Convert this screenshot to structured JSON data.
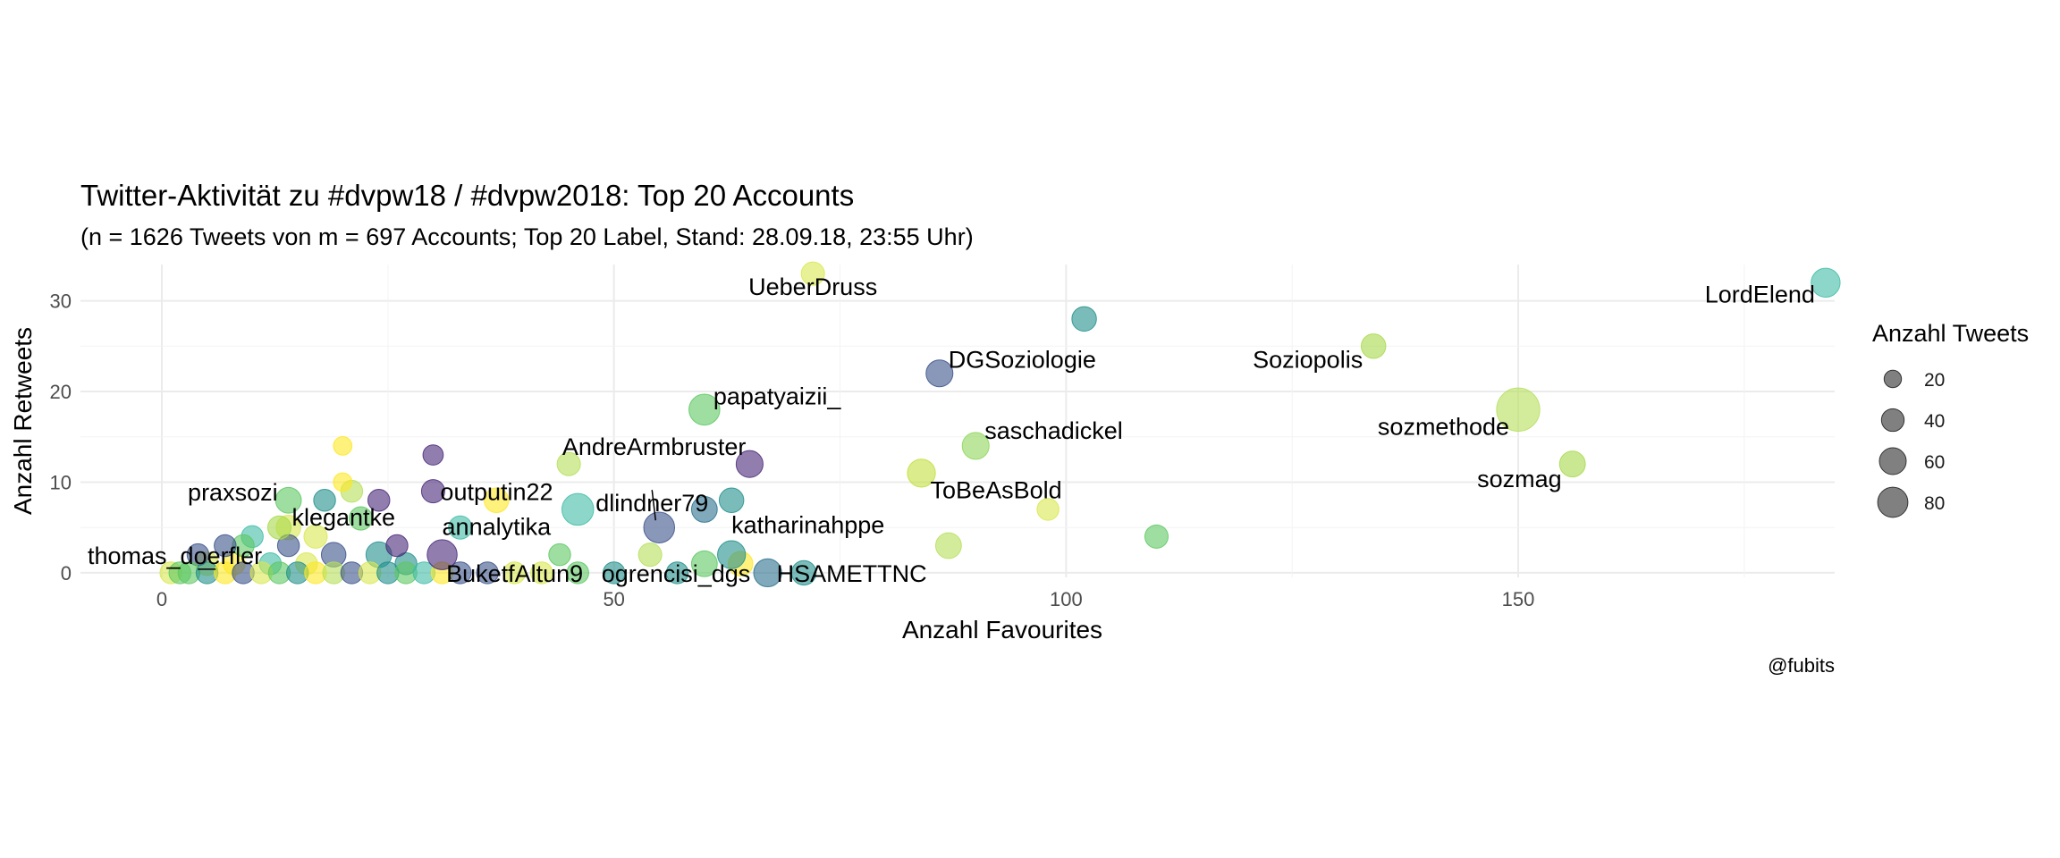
{
  "title": "Twitter-Aktivität zu #dvpw18 / #dvpw2018: Top 20 Accounts",
  "subtitle": "(n = 1626 Tweets von m = 697 Accounts; Top 20 Label, Stand: 28.09.18, 23:55 Uhr)",
  "caption": "@fubits",
  "chart_data": {
    "type": "scatter",
    "title": "Twitter-Aktivität zu #dvpw18 / #dvpw2018: Top 20 Accounts",
    "subtitle": "(n = 1626 Tweets von m = 697 Accounts; Top 20 Label, Stand: 28.09.18, 23:55 Uhr)",
    "xlabel": "Anzahl Favourites",
    "ylabel": "Anzahl Retweets",
    "xlim": [
      -9,
      185
    ],
    "ylim": [
      -0.5,
      34
    ],
    "xticks": [
      0,
      50,
      100,
      150
    ],
    "yticks": [
      0,
      10,
      20,
      30
    ],
    "grid": true,
    "legend": {
      "title": "Anzahl Tweets",
      "placement": "right",
      "sizes": [
        {
          "label": "20",
          "value": 20
        },
        {
          "label": "40",
          "value": 40
        },
        {
          "label": "60",
          "value": 60
        },
        {
          "label": "80",
          "value": 80
        }
      ]
    },
    "colors": {
      "viridis": [
        "#440154",
        "#3b528b",
        "#21908c",
        "#5dc863",
        "#fde725"
      ]
    },
    "labeled_points": [
      {
        "label": "LordElend",
        "x": 184,
        "y": 32,
        "size": 22,
        "color": "#3fbca6"
      },
      {
        "label": "UeberDruss",
        "x": 72,
        "y": 33,
        "size": 12,
        "color": "#d9e84f"
      },
      {
        "label": "DGSoziologie",
        "x": 86,
        "y": 22,
        "size": 18,
        "color": "#3b528b"
      },
      {
        "label": "Soziopolis",
        "x": 134,
        "y": 25,
        "size": 14,
        "color": "#a6d94a"
      },
      {
        "label": "papatyaizii_",
        "x": 60,
        "y": 18,
        "size": 26,
        "color": "#5dc863"
      },
      {
        "label": "sozmethode",
        "x": 150,
        "y": 18,
        "size": 60,
        "color": "#b5df5a"
      },
      {
        "label": "saschadickel",
        "x": 90,
        "y": 14,
        "size": 18,
        "color": "#8ed65a"
      },
      {
        "label": "AndreArmbruster",
        "x": 65,
        "y": 12,
        "size": 18,
        "color": "#482878"
      },
      {
        "label": "sozmag",
        "x": 156,
        "y": 12,
        "size": 16,
        "color": "#a6d94a"
      },
      {
        "label": "ToBeAsBold",
        "x": 84,
        "y": 11,
        "size": 20,
        "color": "#c2df3d"
      },
      {
        "label": "praxsozi",
        "x": 14,
        "y": 8,
        "size": 16,
        "color": "#5dc863"
      },
      {
        "label": "outputin22",
        "x": 30,
        "y": 9,
        "size": 12,
        "color": "#482878"
      },
      {
        "label": "dlindner79",
        "x": 55,
        "y": 5,
        "size": 26,
        "color": "#3b528b"
      },
      {
        "label": "klegantke",
        "x": 13,
        "y": 5,
        "size": 12,
        "color": "#a6d94a"
      },
      {
        "label": "annalytika",
        "x": 31,
        "y": 2,
        "size": 24,
        "color": "#482878"
      },
      {
        "label": "katharinahppe",
        "x": 63,
        "y": 2,
        "size": 20,
        "color": "#21908c"
      },
      {
        "label": "thomas_doerfler",
        "x": 2,
        "y": 0,
        "size": 10,
        "color": "#5dc863"
      },
      {
        "label": "BuketfAltun9",
        "x": 36,
        "y": 0,
        "size": 10,
        "color": "#3b528b"
      },
      {
        "label": "ogrencisi_dgs",
        "x": 50,
        "y": 0,
        "size": 10,
        "color": "#21908c"
      },
      {
        "label": "HSAMETTNC",
        "x": 67,
        "y": 0,
        "size": 20,
        "color": "#2c728e"
      }
    ],
    "unlabeled_points": [
      {
        "x": 102,
        "y": 28,
        "size": 14,
        "color": "#21908c"
      },
      {
        "x": 110,
        "y": 4,
        "size": 12,
        "color": "#5dc863"
      },
      {
        "x": 98,
        "y": 7,
        "size": 10,
        "color": "#d9e84f"
      },
      {
        "x": 87,
        "y": 3,
        "size": 16,
        "color": "#b5df5a"
      },
      {
        "x": 46,
        "y": 7,
        "size": 28,
        "color": "#3fbca6"
      },
      {
        "x": 60,
        "y": 7,
        "size": 16,
        "color": "#2c728e"
      },
      {
        "x": 63,
        "y": 8,
        "size": 14,
        "color": "#21908c"
      },
      {
        "x": 45,
        "y": 12,
        "size": 12,
        "color": "#b5df5a"
      },
      {
        "x": 37,
        "y": 8,
        "size": 14,
        "color": "#fde725"
      },
      {
        "x": 33,
        "y": 5,
        "size": 12,
        "color": "#3fbca6"
      },
      {
        "x": 30,
        "y": 13,
        "size": 8,
        "color": "#482878"
      },
      {
        "x": 20,
        "y": 14,
        "size": 6,
        "color": "#fde725"
      },
      {
        "x": 21,
        "y": 9,
        "size": 10,
        "color": "#b5df5a"
      },
      {
        "x": 20,
        "y": 10,
        "size": 6,
        "color": "#fde725"
      },
      {
        "x": 18,
        "y": 8,
        "size": 10,
        "color": "#21908c"
      },
      {
        "x": 24,
        "y": 8,
        "size": 10,
        "color": "#482878"
      },
      {
        "x": 22,
        "y": 6,
        "size": 12,
        "color": "#5dc863"
      },
      {
        "x": 14,
        "y": 5,
        "size": 14,
        "color": "#d9e84f"
      },
      {
        "x": 10,
        "y": 4,
        "size": 10,
        "color": "#3fbca6"
      },
      {
        "x": 17,
        "y": 4,
        "size": 12,
        "color": "#d9e84f"
      },
      {
        "x": 24,
        "y": 2,
        "size": 16,
        "color": "#21908c"
      },
      {
        "x": 19,
        "y": 2,
        "size": 14,
        "color": "#3b528b"
      },
      {
        "x": 44,
        "y": 2,
        "size": 10,
        "color": "#5dc863"
      },
      {
        "x": 54,
        "y": 2,
        "size": 12,
        "color": "#b5df5a"
      },
      {
        "x": 60,
        "y": 1,
        "size": 16,
        "color": "#5dc863"
      },
      {
        "x": 64,
        "y": 1,
        "size": 14,
        "color": "#fde725"
      },
      {
        "x": 71,
        "y": 0,
        "size": 14,
        "color": "#21908c"
      },
      {
        "x": 42,
        "y": 0,
        "size": 10,
        "color": "#d9e84f"
      },
      {
        "x": 5,
        "y": 1,
        "size": 12,
        "color": "#d9e84f"
      },
      {
        "x": 8,
        "y": 1,
        "size": 10,
        "color": "#fde725"
      },
      {
        "x": 12,
        "y": 1,
        "size": 10,
        "color": "#3fbca6"
      },
      {
        "x": 16,
        "y": 1,
        "size": 10,
        "color": "#d9e84f"
      },
      {
        "x": 27,
        "y": 1,
        "size": 10,
        "color": "#21908c"
      },
      {
        "x": 4,
        "y": 2,
        "size": 10,
        "color": "#3b528b"
      },
      {
        "x": 9,
        "y": 3,
        "size": 10,
        "color": "#5dc863"
      },
      {
        "x": 14,
        "y": 3,
        "size": 10,
        "color": "#3b528b"
      },
      {
        "x": 26,
        "y": 3,
        "size": 10,
        "color": "#482878"
      },
      {
        "x": 7,
        "y": 3,
        "size": 10,
        "color": "#3b528b"
      },
      {
        "x": 1,
        "y": 0,
        "size": 10,
        "color": "#d9e84f"
      },
      {
        "x": 3,
        "y": 0,
        "size": 10,
        "color": "#5dc863"
      },
      {
        "x": 5,
        "y": 0,
        "size": 10,
        "color": "#21908c"
      },
      {
        "x": 7,
        "y": 0,
        "size": 10,
        "color": "#fde725"
      },
      {
        "x": 9,
        "y": 0,
        "size": 10,
        "color": "#3b528b"
      },
      {
        "x": 11,
        "y": 0,
        "size": 10,
        "color": "#d9e84f"
      },
      {
        "x": 13,
        "y": 0,
        "size": 10,
        "color": "#5dc863"
      },
      {
        "x": 15,
        "y": 0,
        "size": 10,
        "color": "#21908c"
      },
      {
        "x": 17,
        "y": 0,
        "size": 10,
        "color": "#fde725"
      },
      {
        "x": 19,
        "y": 0,
        "size": 10,
        "color": "#b5df5a"
      },
      {
        "x": 21,
        "y": 0,
        "size": 10,
        "color": "#3b528b"
      },
      {
        "x": 23,
        "y": 0,
        "size": 10,
        "color": "#d9e84f"
      },
      {
        "x": 25,
        "y": 0,
        "size": 10,
        "color": "#21908c"
      },
      {
        "x": 27,
        "y": 0,
        "size": 10,
        "color": "#5dc863"
      },
      {
        "x": 29,
        "y": 0,
        "size": 10,
        "color": "#3fbca6"
      },
      {
        "x": 31,
        "y": 0,
        "size": 10,
        "color": "#fde725"
      },
      {
        "x": 33,
        "y": 0,
        "size": 10,
        "color": "#3b528b"
      },
      {
        "x": 39,
        "y": 0,
        "size": 10,
        "color": "#d9e84f"
      },
      {
        "x": 46,
        "y": 0,
        "size": 10,
        "color": "#5dc863"
      },
      {
        "x": 57,
        "y": 0,
        "size": 10,
        "color": "#21908c"
      }
    ]
  }
}
